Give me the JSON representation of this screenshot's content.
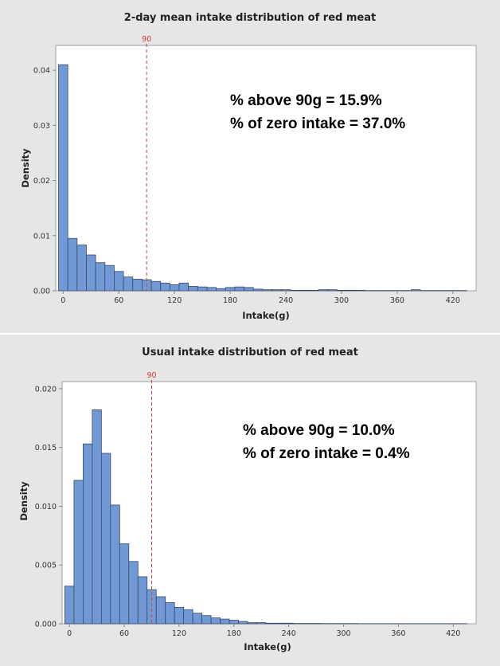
{
  "chart_data": [
    {
      "type": "bar",
      "title": "2-day mean intake distribution of red meat",
      "xlabel": "Intake(g)",
      "ylabel": "Density",
      "bin_width": 10,
      "bin_start": -5,
      "x": [
        0,
        10,
        20,
        30,
        40,
        50,
        60,
        70,
        80,
        90,
        100,
        110,
        120,
        130,
        140,
        150,
        160,
        170,
        180,
        190,
        200,
        210,
        220,
        230,
        240,
        250,
        260,
        270,
        280,
        290,
        300,
        310,
        320,
        330,
        340,
        350,
        360,
        370,
        380,
        390,
        400,
        410,
        420,
        430
      ],
      "values": [
        0.041,
        0.0095,
        0.0083,
        0.0065,
        0.0051,
        0.0046,
        0.0035,
        0.0025,
        0.0021,
        0.002,
        0.0017,
        0.0014,
        0.0011,
        0.0014,
        0.0008,
        0.0007,
        0.0006,
        0.0004,
        0.0006,
        0.0007,
        0.0006,
        0.0003,
        0.0002,
        0.0002,
        0.0002,
        0.0001,
        0.0001,
        0.0001,
        0.0002,
        0.0002,
        0.0001,
        0.0001,
        0.0001,
        5e-05,
        5e-05,
        5e-05,
        5e-05,
        5e-05,
        0.0002,
        5e-05,
        5e-05,
        5e-05,
        5e-05,
        5e-05
      ],
      "xlim": [
        -8,
        445
      ],
      "ylim": [
        0,
        0.0445
      ],
      "xticks": [
        0,
        60,
        120,
        180,
        240,
        300,
        360,
        420
      ],
      "xtick_labels": [
        "0",
        "60",
        "120",
        "180",
        "240",
        "300",
        "360",
        "420"
      ],
      "yticks": [
        0,
        0.01,
        0.02,
        0.03,
        0.04
      ],
      "ytick_labels": [
        "0.00",
        "0.01",
        "0.02",
        "0.03",
        "0.04"
      ],
      "reference_line": {
        "x": 90,
        "label": "90",
        "color": "#d83a3a"
      },
      "annotations": [
        "% above 90g = 15.9%",
        "% of zero intake = 37.0%"
      ],
      "bar_color": "#7199d6",
      "grid": false
    },
    {
      "type": "bar",
      "title": "Usual intake distribution of red meat",
      "xlabel": "Intake(g)",
      "ylabel": "Density",
      "bin_width": 10,
      "bin_start": -5,
      "x": [
        0,
        10,
        20,
        30,
        40,
        50,
        60,
        70,
        80,
        90,
        100,
        110,
        120,
        130,
        140,
        150,
        160,
        170,
        180,
        190,
        200,
        210,
        220,
        230,
        240,
        250,
        260,
        270,
        280,
        290,
        300,
        310,
        320,
        330,
        340,
        350,
        360,
        370,
        380,
        390,
        400,
        410,
        420,
        430
      ],
      "values": [
        0.0032,
        0.0122,
        0.0153,
        0.0182,
        0.0145,
        0.0101,
        0.0068,
        0.0053,
        0.004,
        0.0029,
        0.0023,
        0.0018,
        0.0014,
        0.0012,
        0.0009,
        0.0007,
        0.0005,
        0.0004,
        0.0003,
        0.0002,
        0.0001,
        0.0001,
        5e-05,
        5e-05,
        5e-05,
        3e-05,
        3e-05,
        3e-05,
        2e-05,
        2e-05,
        2e-05,
        2e-05,
        1e-05,
        1e-05,
        1e-05,
        1e-05,
        1e-05,
        1e-05,
        1e-05,
        1e-05,
        1e-05,
        1e-05,
        1e-05,
        1e-05
      ],
      "xlim": [
        -8,
        445
      ],
      "ylim": [
        0,
        0.0206
      ],
      "xticks": [
        0,
        60,
        120,
        180,
        240,
        300,
        360,
        420
      ],
      "xtick_labels": [
        "0",
        "60",
        "120",
        "180",
        "240",
        "300",
        "360",
        "420"
      ],
      "yticks": [
        0,
        0.005,
        0.01,
        0.015,
        0.02
      ],
      "ytick_labels": [
        "0.000",
        "0.005",
        "0.010",
        "0.015",
        "0.020"
      ],
      "reference_line": {
        "x": 90,
        "label": "90",
        "color": "#d83a3a"
      },
      "annotations": [
        "% above 90g = 10.0%",
        "% of zero intake = 0.4%"
      ],
      "bar_color": "#7199d6",
      "grid": false
    }
  ],
  "colors": {
    "panel_background": "#e6e6e6",
    "plot_background": "#ffffff",
    "bar_fill": "#7199d6",
    "bar_stroke": "#3b4a66",
    "reference_line": "#d83a3a",
    "axis": "#888888"
  }
}
